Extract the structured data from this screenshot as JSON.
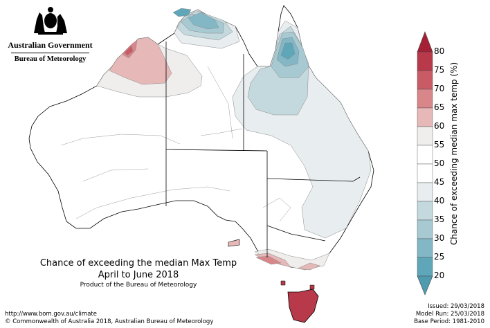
{
  "header": {
    "government": "Australian Government",
    "agency": "Bureau of Meteorology"
  },
  "map_title": {
    "line1": "Chance of exceeding the median Max Temp",
    "line2": "April to June 2018",
    "line3": "Product of the Bureau of Meteorology"
  },
  "footer": {
    "url": "http://www.bom.gov.au/climate",
    "copyright": "© Commonwealth of Australia 2018, Australian Bureau of Meteorology"
  },
  "run_info": {
    "issued": "Issued: 29/03/2018",
    "model_run": "Model Run: 25/03/2018",
    "base_period": "Base Period: 1981-2010"
  },
  "colorbar": {
    "label": "Chance of exceeding median max temp (%)",
    "ticks": [
      "80",
      "75",
      "70",
      "65",
      "60",
      "55",
      "50",
      "45",
      "40",
      "35",
      "30",
      "25",
      "20"
    ],
    "colors": {
      "75_80": "#b8394a",
      "70_75": "#c95b65",
      "65_70": "#d8868a",
      "60_65": "#e6b8b8",
      "55_60": "#efeeed",
      "50_55": "#ffffff",
      "45_50": "#ffffff",
      "40_45": "#e8edef",
      "35_40": "#c4d9de",
      "30_35": "#a6c9d2",
      "25_30": "#83b7c6",
      "20_25": "#5fa6b9"
    }
  }
}
